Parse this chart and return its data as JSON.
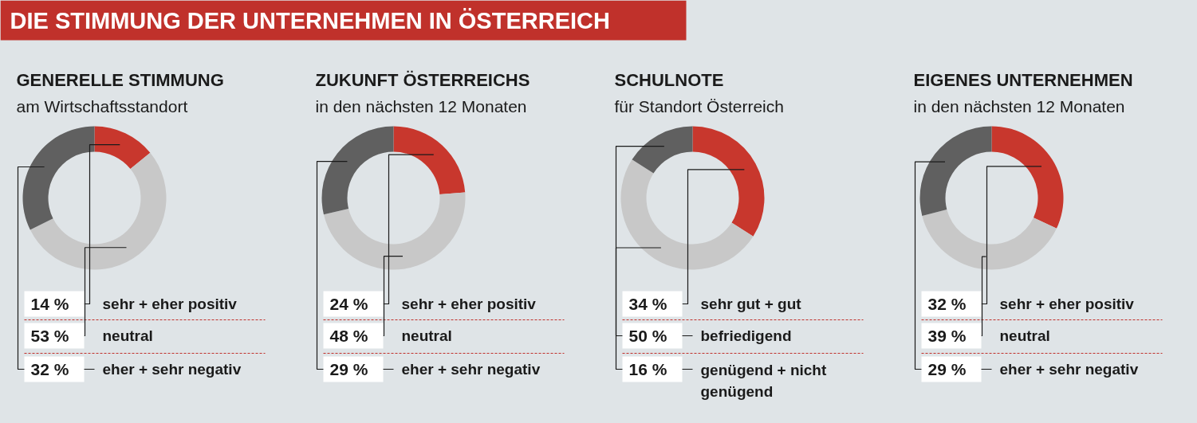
{
  "chart_data": [
    {
      "type": "other",
      "title": "DIE STIMMUNG DER UNTERNEHMEN IN ÖSTERREICH"
    },
    {
      "type": "donut",
      "title": "GENERELLE STIMMUNG",
      "subtitle": "am Wirtschaftsstandort",
      "categories": [
        "sehr + eher positiv",
        "neutral",
        "eher + sehr negativ"
      ],
      "values": [
        14,
        53,
        32
      ],
      "colors": [
        "#c8372d",
        "#c8c8c8",
        "#606060"
      ],
      "value_labels": [
        "14 %",
        "53 %",
        "32 %"
      ]
    },
    {
      "type": "donut",
      "title": "ZUKUNFT ÖSTERREICHS",
      "subtitle": "in den nächsten 12 Monaten",
      "categories": [
        "sehr + eher positiv",
        "neutral",
        "eher + sehr negativ"
      ],
      "values": [
        24,
        48,
        29
      ],
      "colors": [
        "#c8372d",
        "#c8c8c8",
        "#606060"
      ],
      "value_labels": [
        "24 %",
        "48 %",
        "29 %"
      ]
    },
    {
      "type": "donut",
      "title": "SCHULNOTE",
      "subtitle": "für Standort Österreich",
      "categories": [
        "sehr gut + gut",
        "befriedigend",
        "genügend + nicht genügend"
      ],
      "values": [
        34,
        50,
        16
      ],
      "colors": [
        "#c8372d",
        "#c8c8c8",
        "#606060"
      ],
      "value_labels": [
        "34 %",
        "50 %",
        "16 %"
      ]
    },
    {
      "type": "donut",
      "title": "EIGENES UNTERNEHMEN",
      "subtitle": "in den nächsten 12 Monaten",
      "categories": [
        "sehr + eher positiv",
        "neutral",
        "eher + sehr negativ"
      ],
      "values": [
        32,
        39,
        29
      ],
      "colors": [
        "#c8372d",
        "#c8c8c8",
        "#606060"
      ],
      "value_labels": [
        "32 %",
        "39 %",
        "29 %"
      ]
    }
  ]
}
